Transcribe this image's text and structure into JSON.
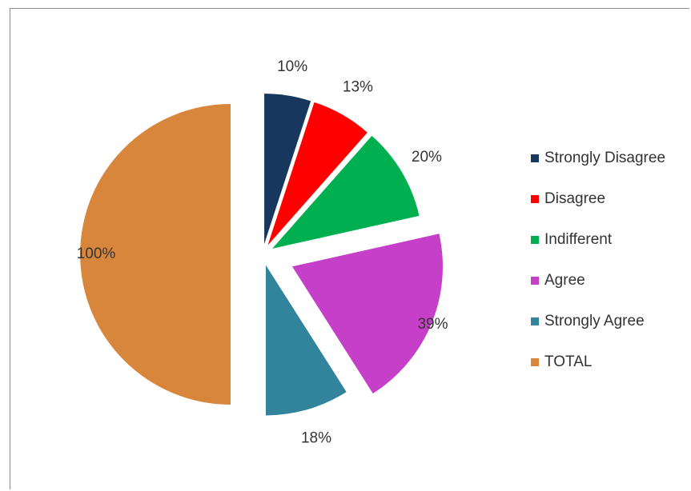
{
  "chart_data": {
    "type": "pie",
    "title": "",
    "legend_position": "right",
    "categories": [
      "Strongly Disagree",
      "Disagree",
      "Indifferent",
      "Agree",
      "Strongly Agree",
      "TOTAL"
    ],
    "values": [
      10,
      13,
      20,
      39,
      18,
      100
    ],
    "labels": [
      "10%",
      "13%",
      "20%",
      "39%",
      "18%",
      "100%"
    ],
    "colors": [
      "#17375e",
      "#ff0000",
      "#00b050",
      "#c63fc8",
      "#31849b",
      "#d9863d"
    ],
    "exploded": true
  }
}
